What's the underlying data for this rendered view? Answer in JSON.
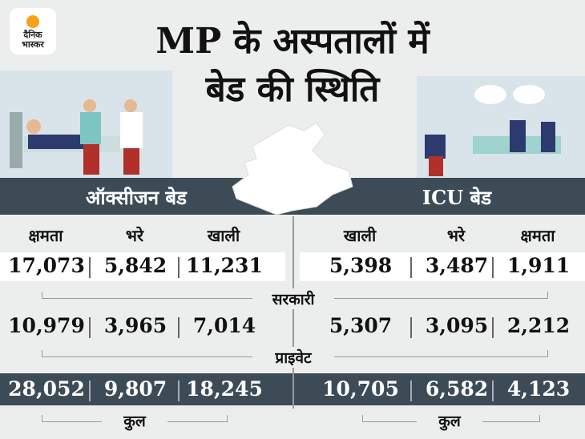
{
  "logo": {
    "line1": "दैनिक",
    "line2": "भास्कर"
  },
  "title": {
    "line1": "MP के अस्पतालों में",
    "line2": "बेड की स्थिति"
  },
  "oxygen": {
    "heading": "ऑक्सीजन बेड",
    "columns": [
      "क्षमता",
      "भरे",
      "खाली"
    ],
    "rows": [
      [
        "17,073",
        "5,842",
        "11,231"
      ],
      [
        "10,979",
        "3,965",
        "7,014"
      ],
      [
        "28,052",
        "9,807",
        "18,245"
      ]
    ]
  },
  "icu": {
    "heading": "ICU बेड",
    "columns": [
      "खाली",
      "भरे",
      "क्षमता"
    ],
    "rows": [
      [
        "5,398",
        "3,487",
        "1,911"
      ],
      [
        "5,307",
        "3,095",
        "2,212"
      ],
      [
        "10,705",
        "6,582",
        "4,123"
      ]
    ]
  },
  "row_labels": [
    "सरकारी",
    "प्राइवेट"
  ],
  "total_labels": [
    "कुल",
    "कुल"
  ]
}
